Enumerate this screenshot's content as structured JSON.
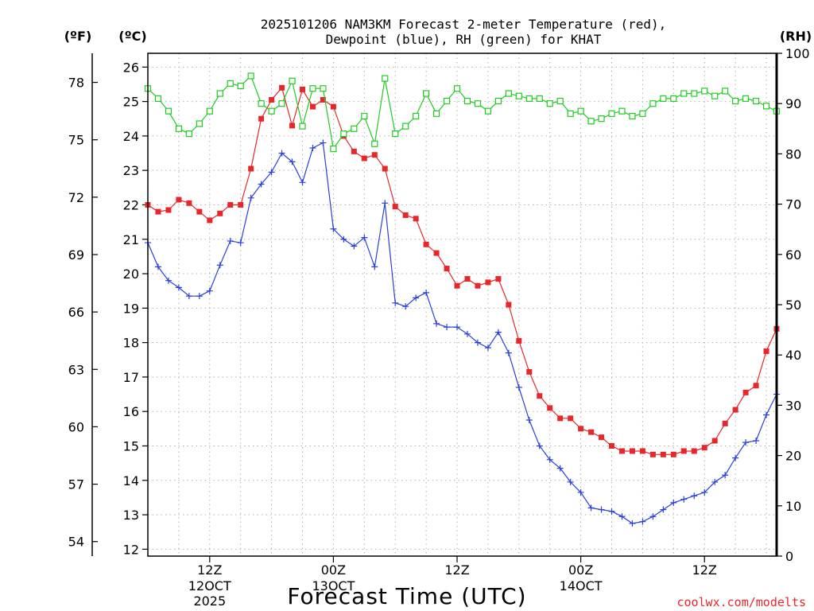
{
  "chart_data": {
    "type": "line",
    "title_line1": "2025101206 NAM3KM Forecast 2-meter Temperature (red),",
    "title_line2": "Dewpoint (blue), RH (green) for KHAT",
    "unit_left_f": "(ºF)",
    "unit_left_c": "(ºC)",
    "unit_right": "(RH)",
    "xlabel": "Forecast Time (UTC)",
    "watermark": "coolwx.com/modelts",
    "x_range_hours": [
      6,
      67
    ],
    "x_ticks": [
      {
        "hour": 12,
        "label": "12Z",
        "sub1": "12OCT",
        "sub2": "2025"
      },
      {
        "hour": 24,
        "label": "00Z",
        "sub1": "13OCT",
        "sub2": ""
      },
      {
        "hour": 36,
        "label": "12Z",
        "sub1": "",
        "sub2": ""
      },
      {
        "hour": 48,
        "label": "00Z",
        "sub1": "14OCT",
        "sub2": ""
      },
      {
        "hour": 60,
        "label": "12Z",
        "sub1": "",
        "sub2": ""
      }
    ],
    "celsius_axis": {
      "range": [
        11.8,
        26.4
      ],
      "ticks": [
        12,
        13,
        14,
        15,
        16,
        17,
        18,
        19,
        20,
        21,
        22,
        23,
        24,
        25,
        26
      ]
    },
    "fahrenheit_ticks": [
      54,
      57,
      60,
      63,
      66,
      69,
      72,
      75,
      78
    ],
    "rh_axis": {
      "range": [
        0,
        100
      ],
      "ticks": [
        0,
        10,
        20,
        30,
        40,
        50,
        60,
        70,
        80,
        90,
        100
      ]
    },
    "x": [
      6,
      7,
      8,
      9,
      10,
      11,
      12,
      13,
      14,
      15,
      16,
      17,
      18,
      19,
      20,
      21,
      22,
      23,
      24,
      25,
      26,
      27,
      28,
      29,
      30,
      31,
      32,
      33,
      34,
      35,
      36,
      37,
      38,
      39,
      40,
      41,
      42,
      43,
      44,
      45,
      46,
      47,
      48,
      49,
      50,
      51,
      52,
      53,
      54,
      55,
      56,
      57,
      58,
      59,
      60,
      61,
      62,
      63,
      64,
      65,
      66,
      67
    ],
    "series": [
      {
        "name": "Temperature",
        "units": "C",
        "color": "#e8272a",
        "marker": "filled-square",
        "values": [
          22.0,
          21.8,
          21.85,
          22.15,
          22.05,
          21.8,
          21.55,
          21.75,
          22.0,
          22.0,
          23.05,
          24.5,
          25.05,
          25.4,
          24.3,
          25.35,
          24.85,
          25.05,
          24.85,
          24.0,
          23.55,
          23.35,
          23.45,
          23.05,
          21.95,
          21.7,
          21.6,
          20.85,
          20.6,
          20.15,
          19.65,
          19.85,
          19.65,
          19.75,
          19.85,
          19.1,
          18.05,
          17.15,
          16.45,
          16.1,
          15.8,
          15.8,
          15.5,
          15.4,
          15.25,
          15.0,
          14.85,
          14.85,
          14.85,
          14.75,
          14.75,
          14.75,
          14.85,
          14.85,
          14.95,
          15.15,
          15.65,
          16.05,
          16.55,
          16.75,
          17.75,
          18.4
        ]
      },
      {
        "name": "Dewpoint",
        "units": "C",
        "color": "#2a3fdc",
        "marker": "plus",
        "values": [
          20.9,
          20.2,
          19.8,
          19.6,
          19.35,
          19.35,
          19.5,
          20.25,
          20.95,
          20.9,
          22.2,
          22.6,
          22.95,
          23.5,
          23.25,
          22.65,
          23.65,
          23.8,
          21.3,
          21.0,
          20.8,
          21.05,
          20.2,
          22.05,
          19.15,
          19.05,
          19.3,
          19.45,
          18.55,
          18.45,
          18.45,
          18.25,
          18.0,
          17.85,
          18.3,
          17.7,
          16.7,
          15.75,
          15.0,
          14.6,
          14.35,
          13.95,
          13.65,
          13.2,
          13.15,
          13.1,
          12.95,
          12.75,
          12.8,
          12.95,
          13.15,
          13.35,
          13.45,
          13.55,
          13.65,
          13.95,
          14.15,
          14.65,
          15.1,
          15.15,
          15.9,
          16.5
        ]
      },
      {
        "name": "RH",
        "units": "%",
        "color": "#1fcc1f",
        "marker": "open-square",
        "values": [
          93,
          91,
          88.5,
          85,
          84,
          86,
          88.5,
          92,
          94,
          93.5,
          95.5,
          90,
          88.5,
          90,
          94.5,
          85.5,
          93,
          93,
          81,
          84,
          85,
          87.5,
          82,
          95,
          84,
          85.5,
          87.5,
          92,
          88,
          90.5,
          93,
          90.5,
          90,
          88.5,
          90.5,
          92,
          91.5,
          91,
          91,
          90,
          90.5,
          88,
          88.5,
          86.5,
          87,
          88,
          88.5,
          87.5,
          88,
          90,
          91,
          91,
          92,
          92,
          92.5,
          91.5,
          92.5,
          90.5,
          91,
          90.5,
          89.5,
          88.5
        ]
      }
    ]
  }
}
